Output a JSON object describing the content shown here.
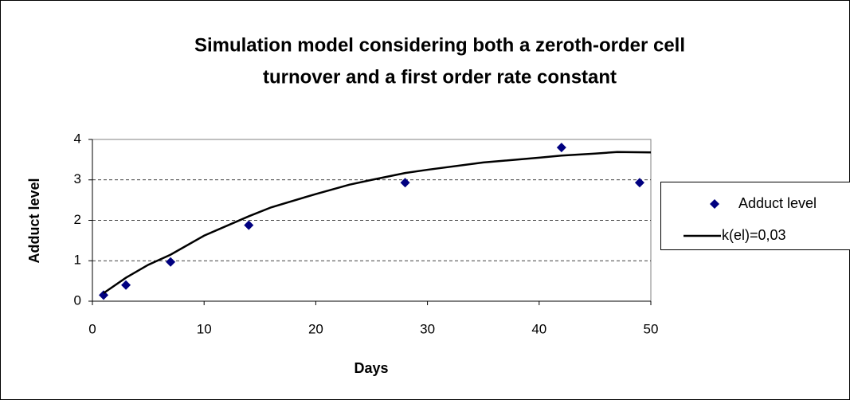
{
  "chart_data": {
    "type": "scatter",
    "title": [
      "Simulation model considering both a zeroth-order cell",
      "turnover and a first order rate constant"
    ],
    "x_label": "Days",
    "y_label": "Adduct level",
    "xlim": [
      0,
      50
    ],
    "xticks": [
      0,
      10,
      20,
      30,
      40,
      50
    ],
    "ylim": [
      0,
      4
    ],
    "yticks": [
      0,
      1,
      2,
      3,
      4
    ],
    "grid": true,
    "legend": "right",
    "series": [
      {
        "name": "Adduct level",
        "color": "#000080",
        "marker": "diamond",
        "x": [
          1,
          3,
          7,
          14,
          28,
          42,
          49
        ],
        "values": [
          0.15,
          0.4,
          0.97,
          1.88,
          2.93,
          3.8,
          2.93
        ]
      },
      {
        "name": "k(el)=0,03",
        "color": "#000000",
        "marker": "line",
        "x": [
          1,
          3,
          5,
          7,
          10,
          14,
          16,
          20,
          23,
          25,
          28,
          30,
          35,
          40,
          42,
          45,
          47,
          50
        ],
        "values": [
          0.2,
          0.58,
          0.9,
          1.15,
          1.62,
          2.1,
          2.32,
          2.65,
          2.88,
          3.0,
          3.17,
          3.25,
          3.43,
          3.55,
          3.6,
          3.65,
          3.69,
          3.68
        ]
      }
    ]
  }
}
